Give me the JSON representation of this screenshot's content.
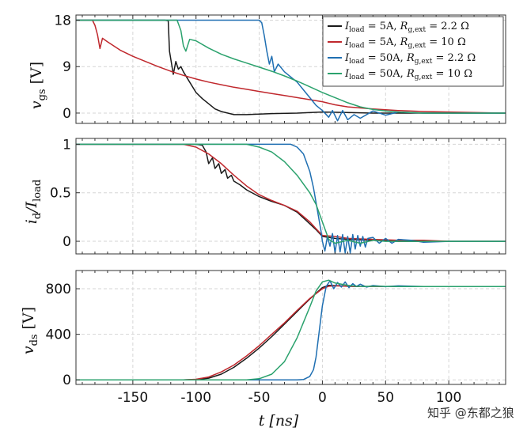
{
  "chart_data": [
    {
      "type": "line",
      "ylabel": "v_gs [V]",
      "ylabel_main": "v",
      "ylabel_sub": "gs",
      "ylabel_unit": " [V]",
      "ylim": [
        -2,
        19
      ],
      "xlim": [
        -195,
        145
      ],
      "yticks": [
        0,
        9,
        18
      ],
      "ytick_labels": [
        "0",
        "9",
        "18"
      ],
      "legend_position": "top-right",
      "series": [
        {
          "name": "I_load = 5A, R_g,ext = 2.2 Ω",
          "color": "#1a1a1a",
          "x": [
            -195,
            -125,
            -122,
            -121,
            -120,
            -118,
            -116,
            -114,
            -112,
            -110,
            -105,
            -100,
            -95,
            -90,
            -85,
            -80,
            -70,
            -60,
            -40,
            -20,
            0,
            20,
            40,
            60,
            100,
            145
          ],
          "y": [
            18,
            18,
            17.9,
            12,
            10.5,
            7.5,
            10,
            8.5,
            9,
            8,
            6,
            4,
            2.8,
            1.8,
            0.8,
            0.3,
            -0.3,
            -0.3,
            -0.1,
            0,
            0.2,
            0.1,
            0,
            0,
            0,
            0
          ]
        },
        {
          "name": "I_load = 5A, R_g,ext = 10 Ω",
          "color": "#c0282d",
          "x": [
            -195,
            -182,
            -180,
            -178,
            -176,
            -174,
            -170,
            -160,
            -150,
            -140,
            -130,
            -120,
            -110,
            -100,
            -90,
            -80,
            -70,
            -60,
            -50,
            -40,
            -30,
            -20,
            -10,
            0,
            10,
            20,
            40,
            60,
            80,
            100,
            145
          ],
          "y": [
            18,
            18,
            17,
            15.2,
            12.5,
            14.5,
            13.8,
            12.2,
            11,
            10,
            9,
            8.1,
            7.3,
            6.6,
            6,
            5.5,
            5,
            4.6,
            4.2,
            3.8,
            3.4,
            3,
            2.6,
            2.2,
            1.6,
            1.2,
            0.8,
            0.5,
            0.3,
            0.2,
            0
          ]
        },
        {
          "name": "I_load = 50A, R_g,ext = 2.2 Ω",
          "color": "#1f6fb2",
          "x": [
            -195,
            -50,
            -48,
            -46,
            -44,
            -42,
            -40,
            -38,
            -35,
            -30,
            -25,
            -20,
            -15,
            -10,
            -5,
            0,
            5,
            8,
            12,
            16,
            20,
            25,
            30,
            40,
            50,
            60,
            80,
            100,
            145
          ],
          "y": [
            18,
            18,
            17.5,
            15,
            12,
            9.5,
            11,
            8,
            9.5,
            8,
            7,
            6,
            4.5,
            3,
            1.5,
            0.5,
            -0.8,
            0.5,
            -1.5,
            0.5,
            -1.3,
            -0.3,
            -1,
            0.4,
            -0.4,
            0.2,
            0,
            0,
            0
          ]
        },
        {
          "name": "I_load = 50A, R_g,ext = 10 Ω",
          "color": "#2ba26d",
          "x": [
            -195,
            -115,
            -112,
            -110,
            -108,
            -105,
            -100,
            -90,
            -80,
            -70,
            -60,
            -50,
            -40,
            -30,
            -20,
            -10,
            0,
            10,
            20,
            30,
            40,
            50,
            60,
            80,
            100,
            145
          ],
          "y": [
            18,
            18,
            16,
            13,
            12,
            14.3,
            14,
            12.6,
            11.4,
            10.5,
            9.7,
            8.9,
            8.1,
            7.2,
            6.2,
            5.1,
            4,
            3,
            2,
            1.2,
            0.7,
            0.4,
            0.2,
            0,
            0,
            0
          ]
        }
      ]
    },
    {
      "type": "line",
      "ylabel": "i_d/I_load",
      "ylabel_main": "i",
      "ylabel_sub": "d",
      "ylabel_rest": "/I",
      "ylabel_sub2": "load",
      "ylim": [
        -0.13,
        1.06
      ],
      "xlim": [
        -195,
        145
      ],
      "yticks": [
        0,
        0.5,
        1
      ],
      "ytick_labels": [
        "0",
        "0.5",
        "1"
      ],
      "series": [
        {
          "name": "I_load = 5A, R_g,ext = 2.2 Ω",
          "color": "#1a1a1a",
          "x": [
            -195,
            -100,
            -95,
            -92,
            -90,
            -87,
            -85,
            -82,
            -80,
            -77,
            -75,
            -72,
            -70,
            -65,
            -60,
            -50,
            -40,
            -30,
            -20,
            -10,
            -5,
            0,
            10,
            20,
            40,
            60,
            100,
            145
          ],
          "y": [
            1,
            1,
            0.99,
            0.92,
            0.8,
            0.86,
            0.75,
            0.8,
            0.7,
            0.74,
            0.65,
            0.68,
            0.62,
            0.58,
            0.53,
            0.46,
            0.41,
            0.37,
            0.3,
            0.18,
            0.12,
            0.05,
            0.03,
            0.02,
            0.01,
            0,
            0,
            0
          ]
        },
        {
          "name": "I_load = 5A, R_g,ext = 10 Ω",
          "color": "#c0282d",
          "x": [
            -195,
            -110,
            -100,
            -90,
            -80,
            -70,
            -60,
            -50,
            -40,
            -30,
            -20,
            -10,
            -5,
            0,
            10,
            20,
            40,
            60,
            80,
            100,
            145
          ],
          "y": [
            1,
            1,
            0.97,
            0.9,
            0.8,
            0.68,
            0.57,
            0.48,
            0.42,
            0.37,
            0.31,
            0.2,
            0.13,
            0.06,
            0.05,
            0.03,
            0.02,
            0.01,
            0.01,
            0,
            0
          ]
        },
        {
          "name": "I_load = 50A, R_g,ext = 2.2 Ω",
          "color": "#1f6fb2",
          "x": [
            -195,
            -25,
            -20,
            -15,
            -10,
            -7,
            -5,
            -3,
            -1,
            0,
            2,
            4,
            6,
            8,
            10,
            12,
            14,
            16,
            18,
            20,
            22,
            24,
            26,
            28,
            30,
            32,
            34,
            36,
            40,
            45,
            50,
            55,
            60,
            70,
            80,
            100,
            120,
            145
          ],
          "y": [
            1,
            1,
            0.97,
            0.9,
            0.72,
            0.55,
            0.4,
            0.25,
            0.1,
            0,
            -0.1,
            0.05,
            -0.05,
            0.08,
            -0.12,
            0.06,
            -0.11,
            0.07,
            -0.12,
            0.05,
            -0.12,
            0.07,
            -0.08,
            0.06,
            -0.05,
            0.05,
            -0.06,
            0.03,
            0.04,
            -0.02,
            0.03,
            -0.02,
            0.02,
            0.01,
            -0.01,
            0,
            0,
            0
          ]
        },
        {
          "name": "I_load = 50A, R_g,ext = 10 Ω",
          "color": "#2ba26d",
          "x": [
            -195,
            -60,
            -50,
            -40,
            -30,
            -20,
            -10,
            -5,
            0,
            5,
            10,
            20,
            30,
            40,
            50,
            60,
            80,
            100,
            145
          ],
          "y": [
            1,
            1,
            0.97,
            0.92,
            0.82,
            0.68,
            0.5,
            0.38,
            0.2,
            0.02,
            -0.02,
            0.01,
            -0.02,
            0.01,
            0,
            0,
            0,
            0,
            0
          ]
        }
      ]
    },
    {
      "type": "line",
      "ylabel": "v_ds [V]",
      "ylabel_main": "v",
      "ylabel_sub": "ds",
      "ylabel_unit": " [V]",
      "ylim": [
        -40,
        960
      ],
      "xlim": [
        -195,
        145
      ],
      "yticks": [
        0,
        400,
        800
      ],
      "ytick_labels": [
        "0",
        "400",
        "800"
      ],
      "xticks": [
        -150,
        -100,
        -50,
        0,
        50,
        100
      ],
      "xtick_labels": [
        "-150",
        "-100",
        "-50",
        "0",
        "50",
        "100"
      ],
      "xlabel": "t [ns]",
      "xlabel_main": "t",
      "xlabel_unit": "[ns]",
      "series": [
        {
          "name": "I_load = 5A, R_g,ext = 2.2 Ω",
          "color": "#1a1a1a",
          "x": [
            -195,
            -110,
            -100,
            -90,
            -80,
            -70,
            -60,
            -50,
            -40,
            -30,
            -20,
            -10,
            -5,
            0,
            5,
            10,
            20,
            30,
            40,
            60,
            100,
            145
          ],
          "y": [
            0,
            0,
            3,
            15,
            50,
            110,
            190,
            280,
            380,
            490,
            600,
            710,
            760,
            810,
            830,
            828,
            822,
            820,
            820,
            820,
            820,
            820
          ]
        },
        {
          "name": "I_load = 5A, R_g,ext = 10 Ω",
          "color": "#c0282d",
          "x": [
            -195,
            -110,
            -100,
            -90,
            -80,
            -70,
            -60,
            -50,
            -40,
            -30,
            -20,
            -10,
            0,
            5,
            10,
            20,
            40,
            60,
            100,
            145
          ],
          "y": [
            0,
            0,
            5,
            25,
            70,
            130,
            210,
            300,
            400,
            500,
            610,
            715,
            800,
            822,
            825,
            822,
            820,
            820,
            820,
            820
          ]
        },
        {
          "name": "I_load = 50A, R_g,ext = 2.2 Ω",
          "color": "#1f6fb2",
          "x": [
            -195,
            -20,
            -15,
            -10,
            -7,
            -5,
            -3,
            0,
            3,
            6,
            9,
            12,
            15,
            18,
            21,
            24,
            27,
            30,
            35,
            40,
            50,
            60,
            80,
            100,
            145
          ],
          "y": [
            0,
            0,
            3,
            30,
            90,
            200,
            380,
            650,
            820,
            870,
            800,
            855,
            815,
            860,
            810,
            845,
            820,
            840,
            815,
            828,
            818,
            825,
            820,
            820,
            820
          ]
        },
        {
          "name": "I_load = 50A, R_g,ext = 10 Ω",
          "color": "#2ba26d",
          "x": [
            -195,
            -60,
            -50,
            -40,
            -30,
            -20,
            -10,
            -5,
            0,
            5,
            10,
            20,
            30,
            40,
            60,
            100,
            145
          ],
          "y": [
            0,
            0,
            10,
            50,
            160,
            370,
            640,
            780,
            860,
            875,
            850,
            830,
            820,
            822,
            820,
            820,
            820
          ]
        }
      ]
    }
  ],
  "legend": [
    {
      "color": "#1a1a1a",
      "I_sym": "I",
      "I_sub": "load",
      "I_val": " = 5A, ",
      "R_sym": "R",
      "R_sub": "g,ext",
      "R_val": " = 2.2 Ω"
    },
    {
      "color": "#c0282d",
      "I_sym": "I",
      "I_sub": "load",
      "I_val": " = 5A, ",
      "R_sym": "R",
      "R_sub": "g,ext",
      "R_val": " = 10 Ω"
    },
    {
      "color": "#1f6fb2",
      "I_sym": "I",
      "I_sub": "load",
      "I_val": " = 50A, ",
      "R_sym": "R",
      "R_sub": "g,ext",
      "R_val": " = 2.2 Ω"
    },
    {
      "color": "#2ba26d",
      "I_sym": "I",
      "I_sub": "load",
      "I_val": " = 50A, ",
      "R_sym": "R",
      "R_sub": "g,ext",
      "R_val": " = 10 Ω"
    }
  ],
  "watermark": "知乎 @东都之狼"
}
